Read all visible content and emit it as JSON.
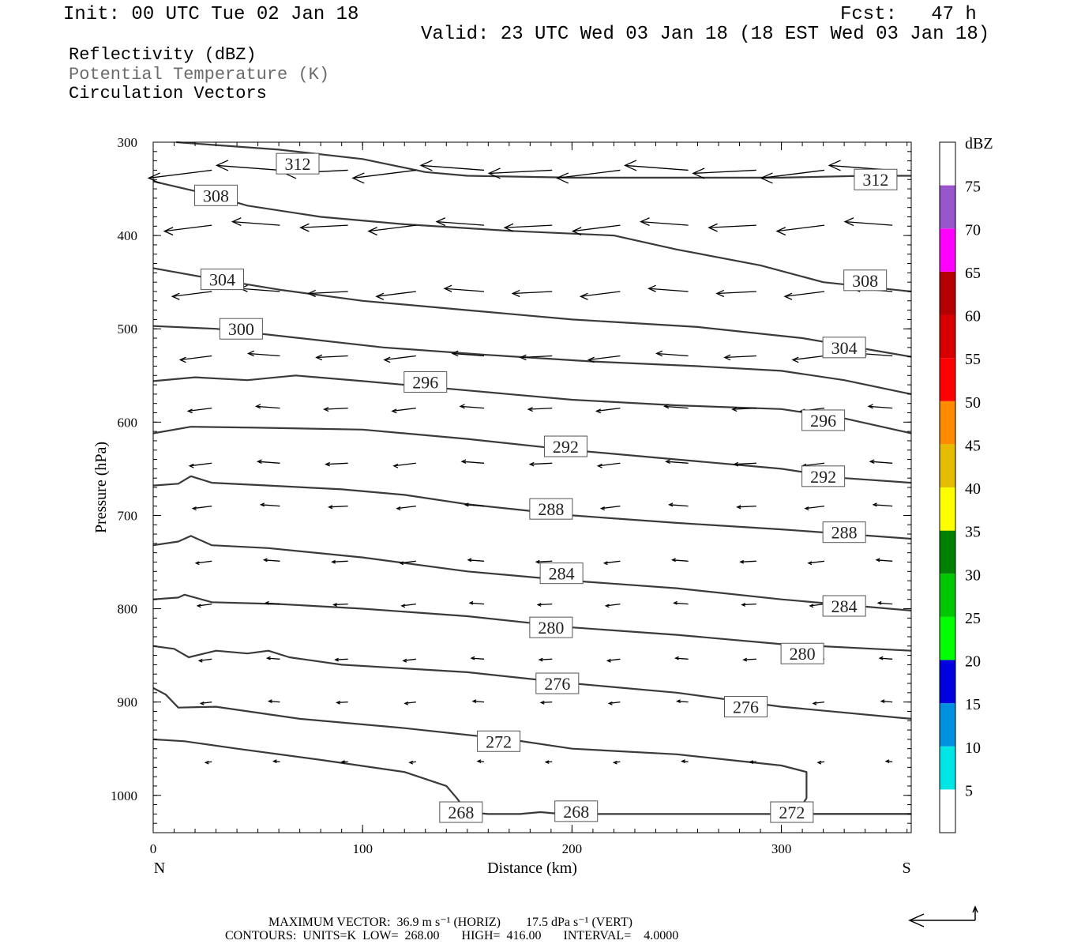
{
  "header": {
    "init": "Init: 00 UTC Tue 02 Jan 18",
    "fcst": "Fcst:   47 h",
    "valid": "Valid: 23 UTC Wed 03 Jan 18 (18 EST Wed 03 Jan 18)"
  },
  "legend": {
    "line1": "Reflectivity (dBZ)",
    "line2": "Potential Temperature (K)",
    "line3": "Circulation Vectors"
  },
  "footer": {
    "line1": "MAXIMUM VECTOR:  36.9 m s⁻¹ (HORIZ)        17.5 dPa s⁻¹ (VERT)",
    "line2": "CONTOURS:  UNITS=K  LOW=  268.00       HIGH=  416.00       INTERVAL=    4.0000"
  },
  "colors": {
    "contour": "#3a3a3a",
    "colorbar": [
      "#00e5e5",
      "#0090e0",
      "#0000e0",
      "#00ff00",
      "#00c800",
      "#008200",
      "#ffff00",
      "#e6bc00",
      "#ff8c00",
      "#ff0000",
      "#d60000",
      "#b40000",
      "#ff00ff",
      "#9955cc"
    ]
  },
  "chart_data": {
    "type": "cross-section",
    "xlabel": "Distance (km)",
    "ylabel": "Pressure (hPa)",
    "xlim": [
      0,
      362
    ],
    "ylim": [
      1040,
      300
    ],
    "x_ticks": [
      0,
      100,
      200,
      300
    ],
    "y_ticks": [
      300,
      400,
      500,
      600,
      700,
      800,
      900,
      1000
    ],
    "x_end_labels": {
      "left": "N",
      "right": "S"
    },
    "colorbar": {
      "unit": "dBZ",
      "levels": [
        5,
        10,
        15,
        20,
        25,
        30,
        35,
        40,
        45,
        50,
        55,
        60,
        65,
        70,
        75
      ]
    },
    "contours": [
      {
        "theta": 312,
        "points": [
          [
            11,
            300
          ],
          [
            60,
            308
          ],
          [
            100,
            318
          ],
          [
            130,
            332
          ],
          [
            150,
            336
          ],
          [
            200,
            338
          ],
          [
            250,
            338
          ],
          [
            300,
            338
          ],
          [
            340,
            336
          ],
          [
            362,
            336
          ]
        ]
      },
      {
        "theta": 308,
        "points": [
          [
            0,
            342
          ],
          [
            25,
            355
          ],
          [
            45,
            368
          ],
          [
            80,
            380
          ],
          [
            120,
            388
          ],
          [
            170,
            395
          ],
          [
            220,
            400
          ],
          [
            250,
            415
          ],
          [
            290,
            432
          ],
          [
            320,
            450
          ],
          [
            362,
            460
          ]
        ]
      },
      {
        "theta": 304,
        "points": [
          [
            0,
            435
          ],
          [
            25,
            445
          ],
          [
            60,
            458
          ],
          [
            100,
            470
          ],
          [
            150,
            480
          ],
          [
            200,
            490
          ],
          [
            260,
            498
          ],
          [
            310,
            510
          ],
          [
            362,
            530
          ]
        ]
      },
      {
        "theta": 300,
        "points": [
          [
            0,
            497
          ],
          [
            30,
            500
          ],
          [
            70,
            510
          ],
          [
            110,
            520
          ],
          [
            160,
            528
          ],
          [
            210,
            535
          ],
          [
            260,
            540
          ],
          [
            300,
            545
          ],
          [
            330,
            555
          ],
          [
            362,
            570
          ]
        ]
      },
      {
        "theta": 296,
        "points": [
          [
            0,
            556
          ],
          [
            20,
            552
          ],
          [
            45,
            555
          ],
          [
            68,
            550
          ],
          [
            100,
            556
          ],
          [
            150,
            566
          ],
          [
            200,
            576
          ],
          [
            250,
            582
          ],
          [
            300,
            586
          ],
          [
            330,
            596
          ],
          [
            362,
            612
          ]
        ]
      },
      {
        "theta": 292,
        "points": [
          [
            0,
            612
          ],
          [
            18,
            605
          ],
          [
            50,
            606
          ],
          [
            100,
            608
          ],
          [
            150,
            618
          ],
          [
            200,
            630
          ],
          [
            250,
            640
          ],
          [
            300,
            650
          ],
          [
            330,
            660
          ],
          [
            362,
            665
          ]
        ]
      },
      {
        "theta": 288,
        "points": [
          [
            0,
            668
          ],
          [
            12,
            666
          ],
          [
            18,
            658
          ],
          [
            28,
            665
          ],
          [
            55,
            668
          ],
          [
            90,
            672
          ],
          [
            120,
            678
          ],
          [
            150,
            688
          ],
          [
            200,
            700
          ],
          [
            250,
            708
          ],
          [
            300,
            715
          ],
          [
            362,
            725
          ]
        ]
      },
      {
        "theta": 284,
        "points": [
          [
            0,
            732
          ],
          [
            12,
            728
          ],
          [
            18,
            722
          ],
          [
            28,
            732
          ],
          [
            55,
            735
          ],
          [
            100,
            745
          ],
          [
            150,
            760
          ],
          [
            200,
            770
          ],
          [
            250,
            778
          ],
          [
            300,
            790
          ],
          [
            362,
            802
          ]
        ]
      },
      {
        "theta": 280,
        "points": [
          [
            0,
            790
          ],
          [
            12,
            788
          ],
          [
            15,
            785
          ],
          [
            28,
            793
          ],
          [
            60,
            795
          ],
          [
            100,
            800
          ],
          [
            150,
            808
          ],
          [
            200,
            820
          ],
          [
            250,
            828
          ],
          [
            300,
            838
          ],
          [
            362,
            845
          ]
        ]
      },
      {
        "theta": 276,
        "points": [
          [
            0,
            840
          ],
          [
            10,
            843
          ],
          [
            17,
            852
          ],
          [
            30,
            845
          ],
          [
            45,
            848
          ],
          [
            55,
            845
          ],
          [
            65,
            852
          ],
          [
            90,
            860
          ],
          [
            150,
            868
          ],
          [
            200,
            880
          ],
          [
            250,
            890
          ],
          [
            300,
            905
          ],
          [
            362,
            918
          ]
        ]
      },
      {
        "theta": 272,
        "points": [
          [
            0,
            885
          ],
          [
            6,
            892
          ],
          [
            12,
            906
          ],
          [
            30,
            905
          ],
          [
            70,
            918
          ],
          [
            120,
            928
          ],
          [
            170,
            940
          ],
          [
            200,
            950
          ],
          [
            250,
            956
          ],
          [
            300,
            968
          ],
          [
            312,
            975
          ],
          [
            312,
            1003
          ],
          [
            307,
            1020
          ],
          [
            362,
            1020
          ]
        ]
      },
      {
        "theta": 268,
        "points": [
          [
            0,
            940
          ],
          [
            15,
            942
          ],
          [
            40,
            950
          ],
          [
            80,
            962
          ],
          [
            120,
            975
          ],
          [
            140,
            990
          ],
          [
            145,
            1003
          ],
          [
            150,
            1018
          ],
          [
            160,
            1020
          ],
          [
            175,
            1020
          ],
          [
            185,
            1018
          ],
          [
            195,
            1020
          ],
          [
            362,
            1020
          ]
        ]
      }
    ],
    "vectors_note": "circulation vectors pointing mostly northward (left), strongest aloft"
  }
}
